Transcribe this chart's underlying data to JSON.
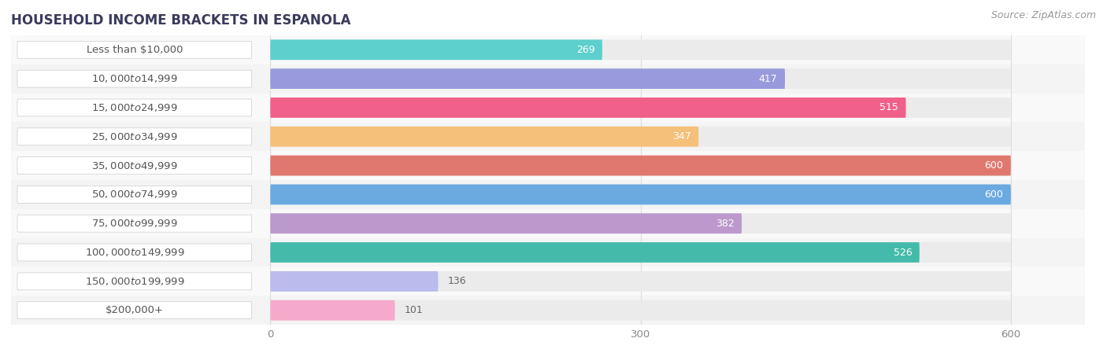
{
  "title": "HOUSEHOLD INCOME BRACKETS IN ESPANOLA",
  "source": "Source: ZipAtlas.com",
  "categories": [
    "Less than $10,000",
    "$10,000 to $14,999",
    "$15,000 to $24,999",
    "$25,000 to $34,999",
    "$35,000 to $49,999",
    "$50,000 to $74,999",
    "$75,000 to $99,999",
    "$100,000 to $149,999",
    "$150,000 to $199,999",
    "$200,000+"
  ],
  "values": [
    269,
    417,
    515,
    347,
    600,
    600,
    382,
    526,
    136,
    101
  ],
  "bar_colors": [
    "#5DCFCC",
    "#9999DD",
    "#F0608A",
    "#F5C07A",
    "#E07870",
    "#6AAAE0",
    "#BB99CC",
    "#44BBAA",
    "#BBBBEE",
    "#F5AACC"
  ],
  "xlim_left": -210,
  "xlim_right": 660,
  "max_val": 600,
  "xticks": [
    0,
    300,
    600
  ],
  "bg_color": "#ffffff",
  "bar_bg_color": "#ebebeb",
  "grid_color": "#dddddd",
  "label_pill_color": "#ffffff",
  "label_text_color": "#555555",
  "value_color_inside": "#ffffff",
  "value_color_outside": "#666666",
  "inside_threshold": 200,
  "title_fontsize": 12,
  "label_fontsize": 9.5,
  "value_fontsize": 9,
  "source_fontsize": 9,
  "bar_height": 0.7,
  "bar_gap": 1.0
}
